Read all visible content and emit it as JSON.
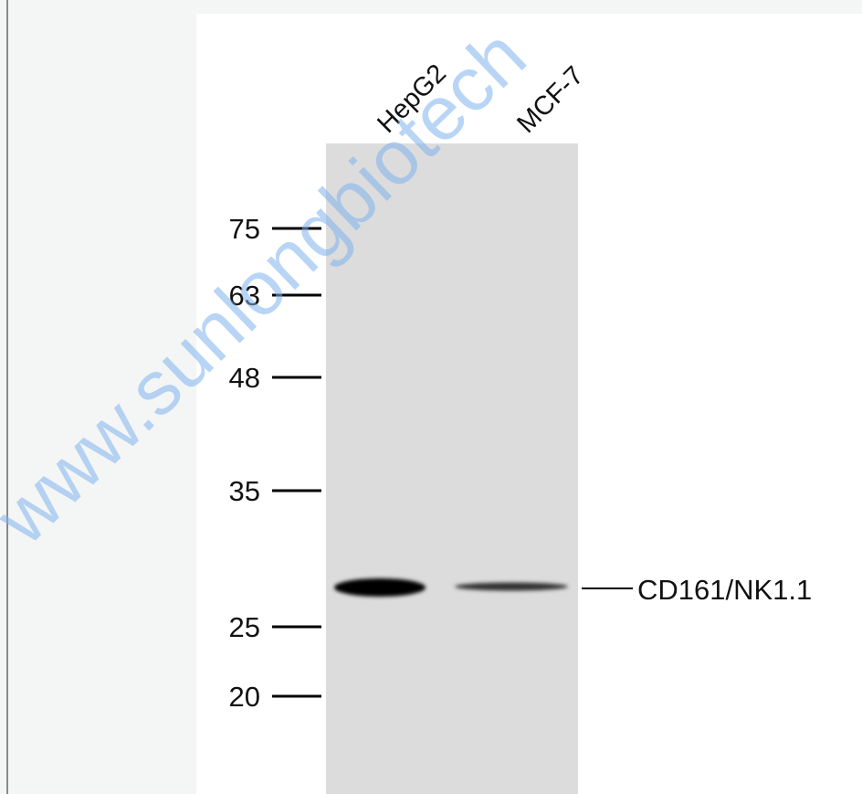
{
  "lanes": [
    "HepG2",
    "MCF-7"
  ],
  "markers": [
    75,
    63,
    48,
    35,
    25,
    20
  ],
  "band_label": "CD161/NK1.1",
  "watermark": "www.sunlongbiotech"
}
